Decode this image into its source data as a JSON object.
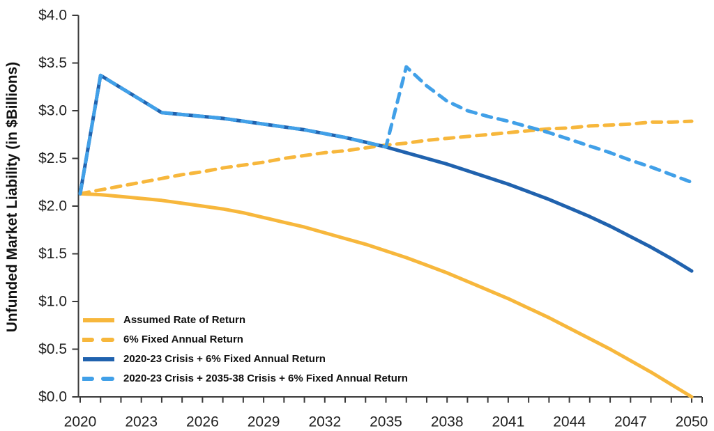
{
  "figure": {
    "background": "#ffffff",
    "y_axis_title": "Unfunded Market Liability (in $Billions)"
  },
  "colors": {
    "gold": "#F7B73C",
    "dark_blue": "#2062AE",
    "light_blue": "#41A0E8",
    "axis": "#3a3a3a",
    "text": "#1f1f1f"
  },
  "chart_data": {
    "type": "line",
    "title": "",
    "xlabel": "",
    "ylabel": "Unfunded Market Liability (in $Billions)",
    "ylim": [
      0.0,
      4.0
    ],
    "xlim": [
      2020,
      2050
    ],
    "grid": false,
    "legend_position": "inside-bottom-left",
    "y_tick_labels": [
      "$0.0",
      "$0.5",
      "$1.0",
      "$1.5",
      "$2.0",
      "$2.5",
      "$3.0",
      "$3.5",
      "$4.0"
    ],
    "y_tick_values": [
      0.0,
      0.5,
      1.0,
      1.5,
      2.0,
      2.5,
      3.0,
      3.5,
      4.0
    ],
    "x_tick_labels": [
      "2020",
      "2023",
      "2026",
      "2029",
      "2032",
      "2035",
      "2038",
      "2041",
      "2044",
      "2047",
      "2050"
    ],
    "x_labeled_years": [
      2020,
      2023,
      2026,
      2029,
      2032,
      2035,
      2038,
      2041,
      2044,
      2047,
      2050
    ],
    "x": [
      2020,
      2021,
      2022,
      2023,
      2024,
      2025,
      2026,
      2027,
      2028,
      2029,
      2030,
      2031,
      2032,
      2033,
      2034,
      2035,
      2036,
      2037,
      2038,
      2039,
      2040,
      2041,
      2042,
      2043,
      2044,
      2045,
      2046,
      2047,
      2048,
      2049,
      2050
    ],
    "series": [
      {
        "name": "Assumed Rate of Return",
        "color": "#F7B73C",
        "dash": "solid",
        "values": [
          2.13,
          2.12,
          2.1,
          2.08,
          2.06,
          2.03,
          2.0,
          1.97,
          1.93,
          1.88,
          1.83,
          1.78,
          1.72,
          1.66,
          1.6,
          1.53,
          1.46,
          1.38,
          1.3,
          1.21,
          1.12,
          1.03,
          0.93,
          0.83,
          0.72,
          0.61,
          0.5,
          0.38,
          0.26,
          0.13,
          0.0
        ]
      },
      {
        "name": "6% Fixed Annual Return",
        "color": "#F7B73C",
        "dash": "dashed",
        "values": [
          2.13,
          2.17,
          2.21,
          2.25,
          2.29,
          2.33,
          2.36,
          2.4,
          2.43,
          2.46,
          2.5,
          2.53,
          2.56,
          2.58,
          2.61,
          2.64,
          2.66,
          2.69,
          2.71,
          2.73,
          2.75,
          2.77,
          2.79,
          2.81,
          2.82,
          2.84,
          2.85,
          2.86,
          2.88,
          2.88,
          2.89
        ]
      },
      {
        "name": "2020-23 Crisis + 6% Fixed Annual Return",
        "color": "#2062AE",
        "dash": "solid",
        "values": [
          2.13,
          3.37,
          3.24,
          3.11,
          2.98,
          2.96,
          2.94,
          2.92,
          2.89,
          2.86,
          2.83,
          2.8,
          2.76,
          2.72,
          2.67,
          2.62,
          2.56,
          2.5,
          2.44,
          2.37,
          2.3,
          2.23,
          2.15,
          2.07,
          1.98,
          1.89,
          1.79,
          1.68,
          1.57,
          1.45,
          1.32
        ]
      },
      {
        "name": "2020-23 Crisis + 2035-38 Crisis + 6% Fixed Annual Return",
        "color": "#41A0E8",
        "dash": "dashed",
        "values": [
          2.13,
          3.37,
          3.24,
          3.11,
          2.98,
          2.96,
          2.94,
          2.92,
          2.89,
          2.86,
          2.83,
          2.8,
          2.76,
          2.72,
          2.67,
          2.62,
          3.46,
          3.26,
          3.1,
          3.0,
          2.94,
          2.89,
          2.83,
          2.77,
          2.7,
          2.63,
          2.56,
          2.48,
          2.41,
          2.33,
          2.25
        ]
      }
    ]
  }
}
